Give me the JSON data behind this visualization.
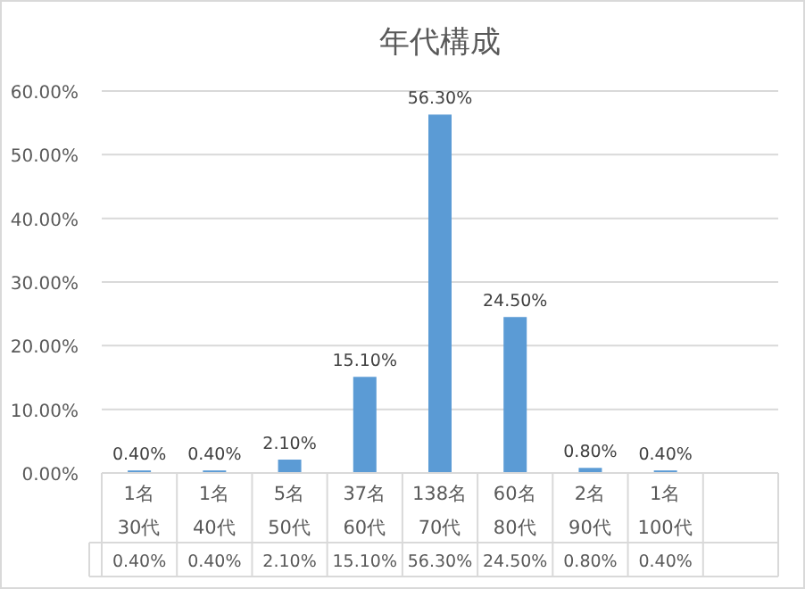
{
  "chart_data": {
    "type": "bar",
    "title": "年代構成",
    "categories": [
      "1名 30代",
      "1名 40代",
      "5名 50代",
      "37名 60代",
      "138名 70代",
      "60名 80代",
      "2名 90代",
      "1名 100代",
      null
    ],
    "values": [
      0.4,
      0.4,
      2.1,
      15.1,
      56.3,
      24.5,
      0.8,
      0.4,
      null
    ],
    "value_labels": [
      "0.40%",
      "0.40%",
      "2.10%",
      "15.10%",
      "56.30%",
      "24.50%",
      "0.80%",
      "0.40%",
      null
    ],
    "color": "#5b9bd5",
    "ylim": [
      0,
      60
    ],
    "yticks": [
      {
        "value": 0,
        "label": "0.00%"
      },
      {
        "value": 10,
        "label": "10.00%"
      },
      {
        "value": 20,
        "label": "20.00%"
      },
      {
        "value": 30,
        "label": "30.00%"
      },
      {
        "value": 40,
        "label": "40.00%"
      },
      {
        "value": 50,
        "label": "50.00%"
      },
      {
        "value": 60,
        "label": "60.00%"
      }
    ],
    "grid": "y"
  }
}
